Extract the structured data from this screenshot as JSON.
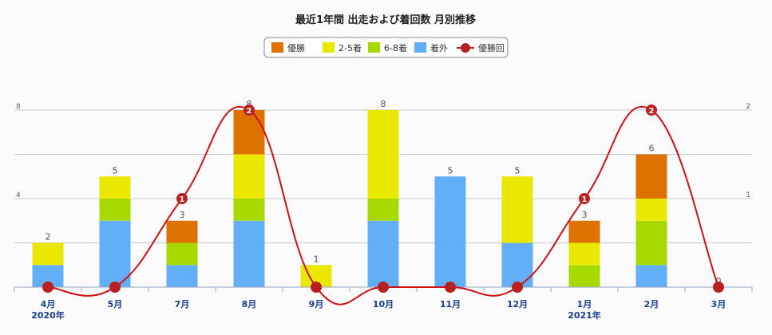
{
  "chart_data": {
    "type": "bar",
    "title": "最近1年間 出走および着回数 月別推移",
    "categories": [
      "4月",
      "5月",
      "7月",
      "8月",
      "9月",
      "10月",
      "11月",
      "12月",
      "1月",
      "2月",
      "3月"
    ],
    "category_sublabels": [
      "2020年",
      "",
      "",
      "",
      "",
      "",
      "",
      "",
      "2021年",
      "",
      ""
    ],
    "stacked": true,
    "series": [
      {
        "name": "着外",
        "color": "#62aef7",
        "values": [
          1,
          3,
          1,
          3,
          0,
          3,
          5,
          2,
          0,
          1,
          0
        ]
      },
      {
        "name": "6-8着",
        "color": "#a7d800",
        "values": [
          0,
          1,
          1,
          1,
          0,
          1,
          0,
          0,
          1,
          2,
          0
        ]
      },
      {
        "name": "2-5着",
        "color": "#ebe800",
        "values": [
          1,
          1,
          0,
          2,
          1,
          4,
          0,
          3,
          1,
          1,
          0
        ]
      },
      {
        "name": "優勝",
        "color": "#dd7200",
        "values": [
          0,
          0,
          1,
          2,
          0,
          0,
          0,
          0,
          1,
          2,
          0
        ]
      }
    ],
    "totals": [
      2,
      5,
      3,
      8,
      1,
      8,
      5,
      5,
      3,
      6,
      0
    ],
    "line_series": {
      "name": "優勝回",
      "color": "#d01010",
      "marker_color": "#b82020",
      "values": [
        0,
        0,
        1,
        2,
        0,
        0,
        0,
        0,
        1,
        2,
        0
      ]
    },
    "y_left": {
      "ticks": [
        4,
        8
      ],
      "ylim": [
        0,
        8
      ]
    },
    "y_right": {
      "ticks": [
        1,
        2
      ],
      "ylim": [
        0,
        2
      ]
    },
    "legend": {
      "position": "top-center",
      "items": [
        {
          "label": "優勝",
          "color": "#dd7200",
          "kind": "box"
        },
        {
          "label": "2-5着",
          "color": "#ebe800",
          "kind": "box"
        },
        {
          "label": "6-8着",
          "color": "#a7d800",
          "kind": "box"
        },
        {
          "label": "着外",
          "color": "#62aef7",
          "kind": "box"
        },
        {
          "label": "優勝回",
          "color": "#b82020",
          "kind": "line"
        }
      ]
    },
    "grid": true
  }
}
